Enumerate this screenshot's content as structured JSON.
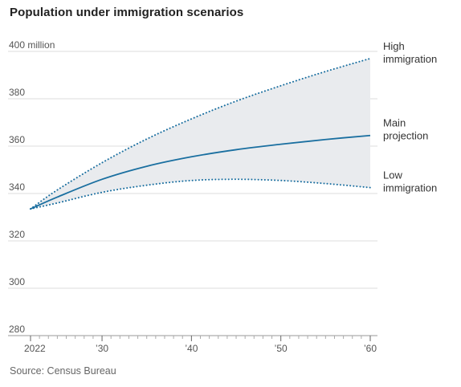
{
  "title": "Population under immigration scenarios",
  "source": "Source: Census Bureau",
  "colors": {
    "line": "#1a6fa0",
    "band": "#e9ebee",
    "grid": "#dcdcdc",
    "axis": "#999999"
  },
  "chart_data": {
    "type": "line",
    "title": "Population under immigration scenarios",
    "xlabel": "",
    "ylabel": "",
    "ylim": [
      280,
      400
    ],
    "xlim": [
      2022,
      2060
    ],
    "grid": true,
    "y_ticks": [
      {
        "value": 400,
        "label": "400 million"
      },
      {
        "value": 380,
        "label": "380"
      },
      {
        "value": 360,
        "label": "360"
      },
      {
        "value": 340,
        "label": "340"
      },
      {
        "value": 320,
        "label": "320"
      },
      {
        "value": 300,
        "label": "300"
      },
      {
        "value": 280,
        "label": "280"
      }
    ],
    "x_ticks": [
      {
        "value": 2022,
        "label": "2022"
      },
      {
        "value": 2030,
        "label": "’30"
      },
      {
        "value": 2040,
        "label": "’40"
      },
      {
        "value": 2050,
        "label": "’50"
      },
      {
        "value": 2060,
        "label": "’60"
      }
    ],
    "x": [
      2022,
      2025,
      2030,
      2035,
      2040,
      2045,
      2050,
      2055,
      2060
    ],
    "series": [
      {
        "name": "High immigration",
        "style": "dotted",
        "label_lines": [
          "High",
          "immigration"
        ],
        "values": [
          333.5,
          341.5,
          353,
          363,
          371.5,
          379,
          385.5,
          391.5,
          397
        ]
      },
      {
        "name": "Main projection",
        "style": "solid",
        "label_lines": [
          "Main",
          "projection"
        ],
        "values": [
          333.5,
          338.5,
          346,
          351.5,
          355.5,
          358.5,
          360.8,
          362.8,
          364.5
        ]
      },
      {
        "name": "Low immigration",
        "style": "dotted",
        "label_lines": [
          "Low",
          "immigration"
        ],
        "values": [
          333.5,
          336,
          340.5,
          343.5,
          345.5,
          346,
          345.5,
          344.2,
          342.5
        ]
      }
    ],
    "band": {
      "upper": "High immigration",
      "lower": "Low immigration"
    }
  }
}
